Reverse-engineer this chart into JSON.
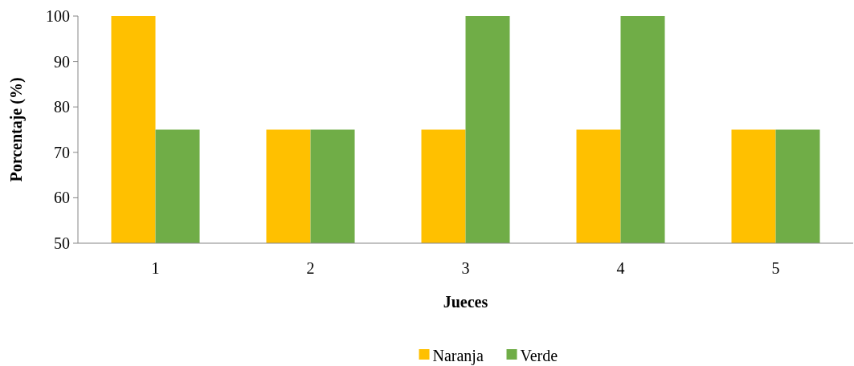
{
  "chart_data": {
    "type": "bar",
    "xlabel": "Jueces",
    "ylabel": "Porcentaje (%)",
    "categories": [
      "1",
      "2",
      "3",
      "4",
      "5"
    ],
    "series": [
      {
        "name": "Naranja",
        "color": "#ffc000",
        "values": [
          100,
          75,
          75,
          75,
          75
        ]
      },
      {
        "name": "Verde",
        "color": "#70ad47",
        "values": [
          75,
          75,
          100,
          100,
          75
        ]
      }
    ],
    "ylim": [
      50,
      100
    ],
    "yticks": [
      50,
      60,
      70,
      80,
      90,
      100
    ],
    "grid": false,
    "legend": "bottom"
  }
}
